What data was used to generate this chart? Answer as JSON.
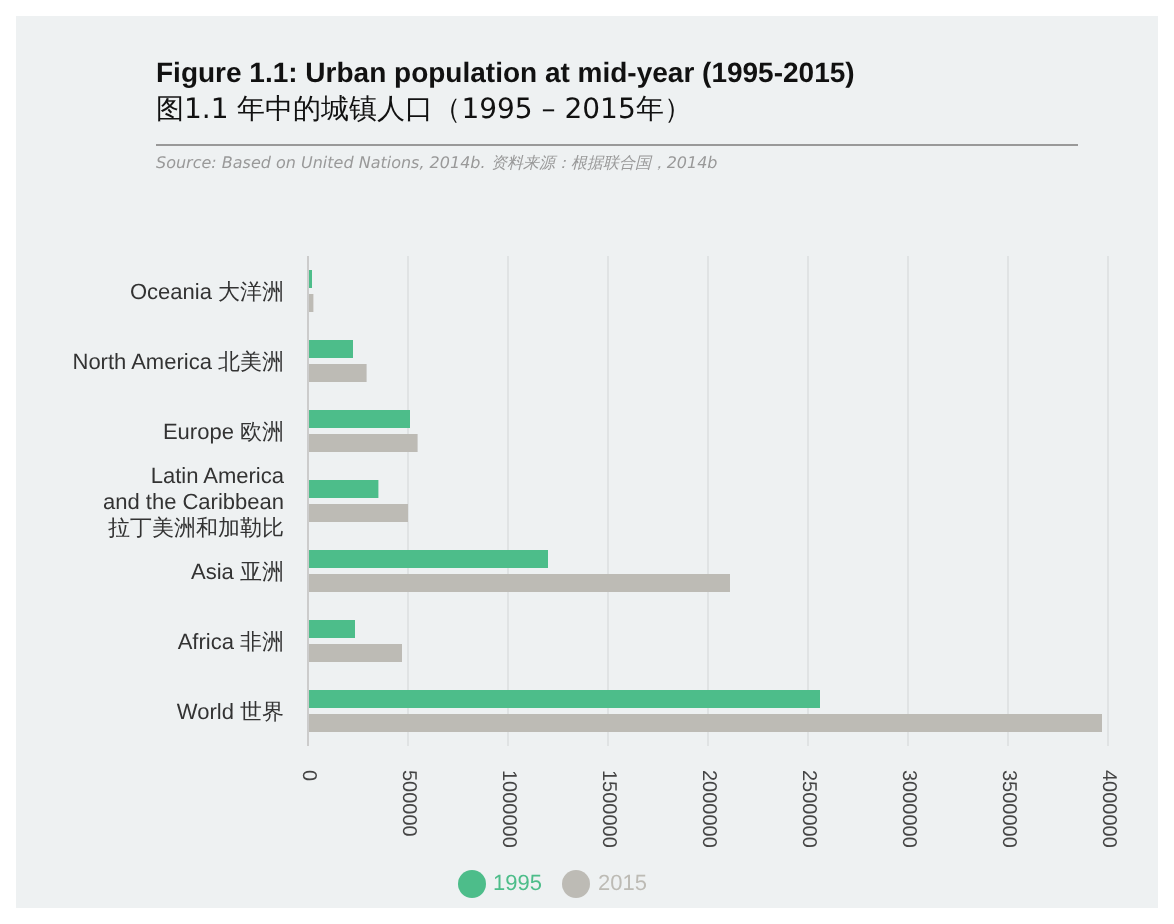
{
  "chart_data": {
    "type": "bar",
    "orientation": "horizontal",
    "title": "Figure 1.1: Urban population at mid-year (1995-2015)",
    "subtitle": "图1.1 年中的城镇人口（1995 – 2015年）",
    "annotations": [
      "Source: Based on United Nations, 2014b. 资料来源：根据联合国，2014b"
    ],
    "categories": [
      "Oceania 大洋洲",
      "North America 北美洲",
      "Europe 欧洲",
      "Latin America\nand the Caribbean\n拉丁美洲和加勒比",
      "Asia 亚洲",
      "Africa 非洲",
      "World 世界"
    ],
    "series": [
      {
        "name": "1995",
        "color": "#4dbd8a",
        "values": [
          20000,
          225000,
          510000,
          352000,
          1200000,
          235000,
          2560000
        ]
      },
      {
        "name": "2015",
        "color": "#bdbbb5",
        "values": [
          27000,
          293000,
          548000,
          500000,
          2110000,
          470000,
          3970000
        ]
      }
    ],
    "xlim": [
      0,
      4000000
    ],
    "xticks": [
      0,
      500000,
      1000000,
      1500000,
      2000000,
      2500000,
      3000000,
      3500000,
      4000000
    ],
    "grid": "x",
    "legend": "bottom"
  }
}
